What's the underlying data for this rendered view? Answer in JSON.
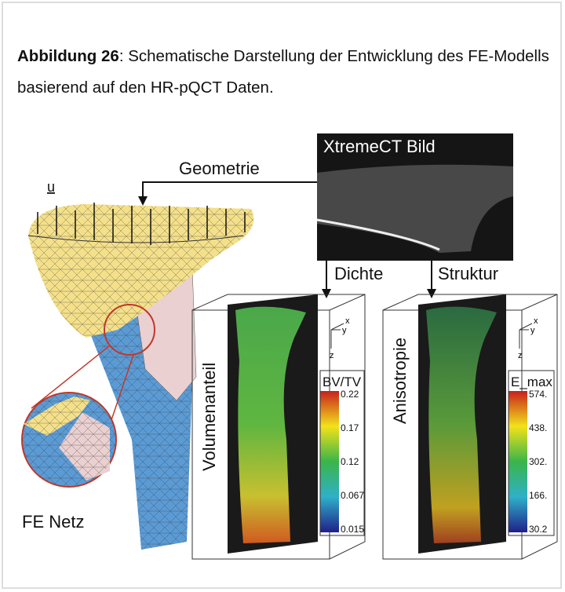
{
  "caption": {
    "label": "Abbildung 26",
    "text": ": Schematische Darstellung der Entwicklung des FE-Modells basierend auf den HR-pQCT Daten."
  },
  "figure": {
    "image_title": "XtremeCT Bild",
    "arrows": [
      "Geometrie",
      "Dichte",
      "Struktur"
    ],
    "load_symbol": "u",
    "mesh_label": "FE Netz",
    "panels": [
      {
        "side_label": "Volumenanteil",
        "colorbar_title": "BV/TV",
        "colorbar_ticks": [
          "0.22",
          "0.17",
          "0.12",
          "0.067",
          "0.015"
        ],
        "axes": [
          "x",
          "y",
          "z"
        ]
      },
      {
        "side_label": "Anisotropie",
        "colorbar_title": "E_max",
        "colorbar_ticks": [
          "574.",
          "438.",
          "302.",
          "166.",
          "30.2"
        ],
        "axes": [
          "x",
          "y",
          "z"
        ]
      }
    ]
  }
}
